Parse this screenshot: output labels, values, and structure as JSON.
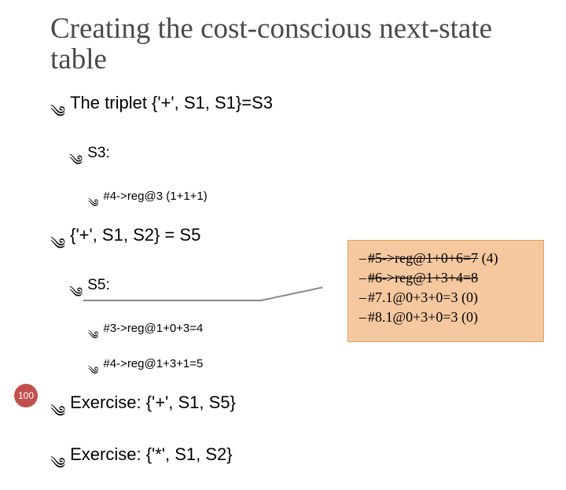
{
  "title": "Creating the cost-conscious next-state table",
  "bullets": {
    "b1": "The triplet {'+', S1, S1}=S3",
    "b2": "S3:",
    "b3": "#4->reg@3  (1+1+1)",
    "b4": "{'+', S1, S2} = S5",
    "b5": "S5:",
    "b6": "#3->reg@1+0+3=4",
    "b7": "#4->reg@1+3+1=5",
    "b8": "Exercise:   {'+', S1, S5}",
    "b9": "Exercise:   {'*', S1, S2}"
  },
  "callout": {
    "c1_a": "#5->reg@1+0+6=7",
    "c1_b": " (4)",
    "c2": "#6->reg@1+3+4=8",
    "c3": "#7.1@0+3+0=3 (0)",
    "c4": "#8.1@0+3+0=3 (0)"
  },
  "page_number": "100",
  "colors": {
    "page_badge_bg": "#c0504d",
    "callout_bg": "#f6c89f",
    "callout_border": "#d9a56a",
    "title_color": "#4a4a4a"
  }
}
